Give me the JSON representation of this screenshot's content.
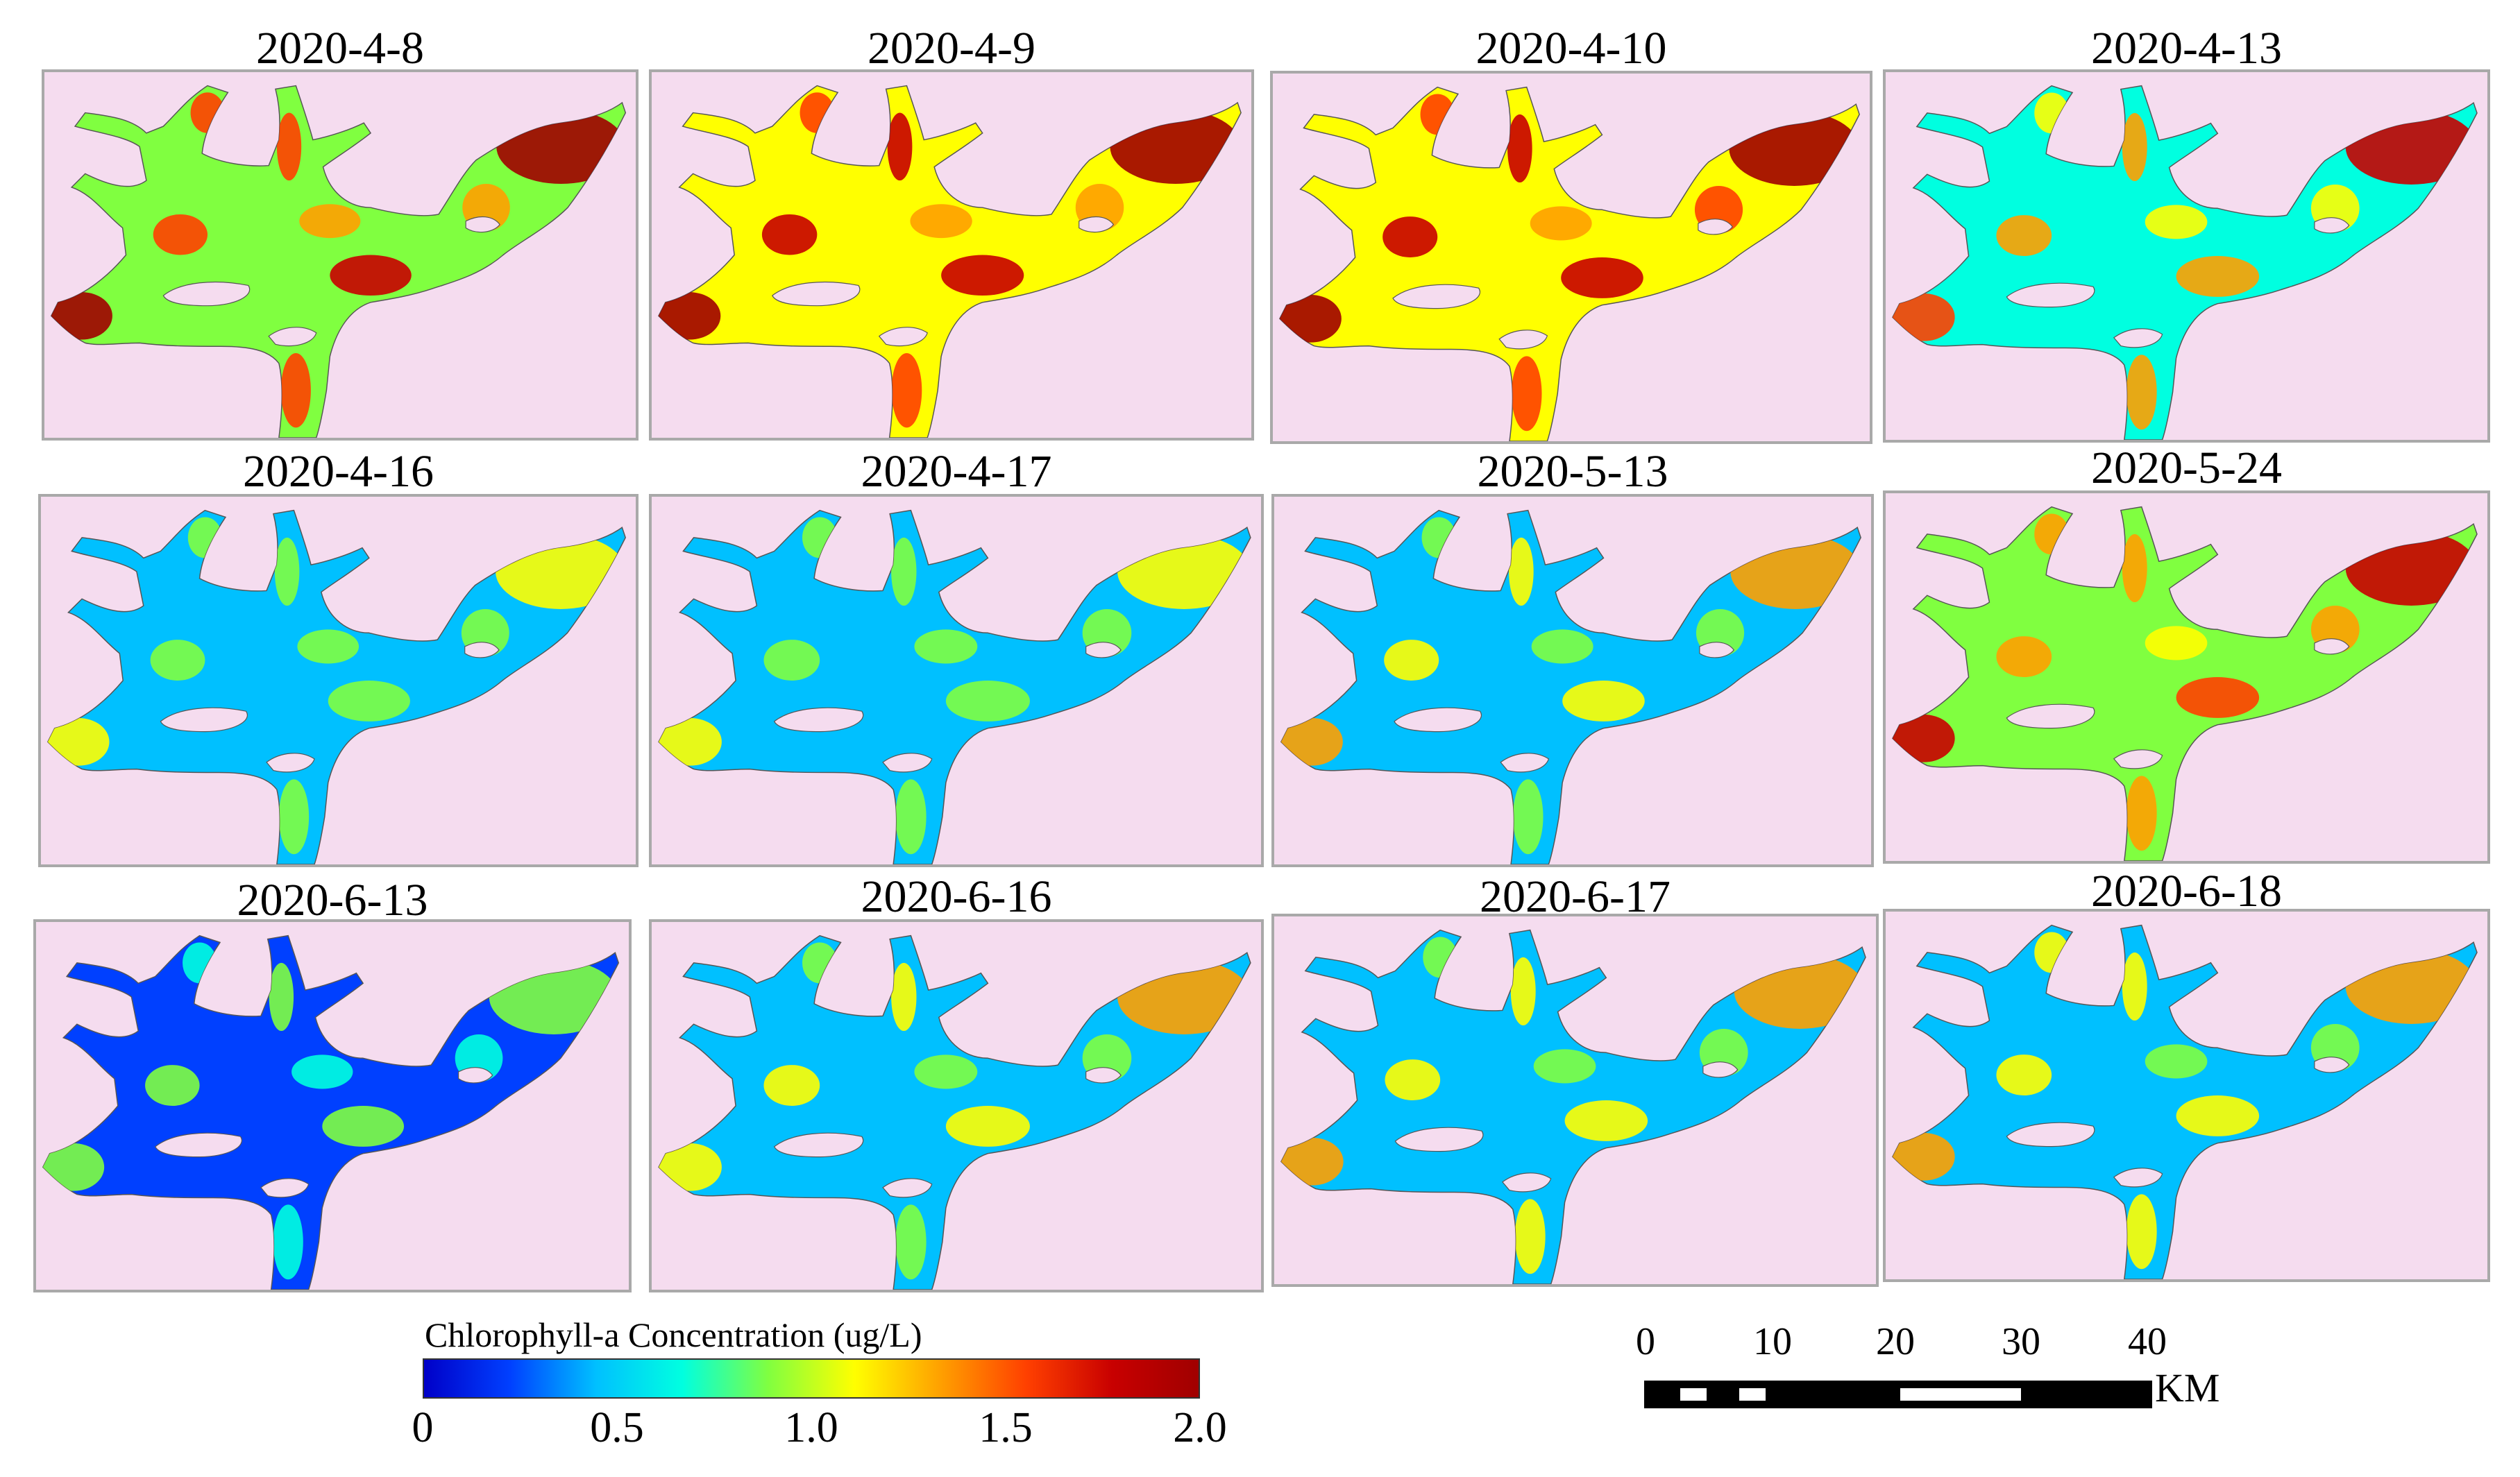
{
  "colors": {
    "panel_background": "#f5dcef",
    "panel_border": "#a9a9a9",
    "colormap": [
      "#0000c8",
      "#0040ff",
      "#00c0ff",
      "#00ffe0",
      "#80ff40",
      "#ffff00",
      "#ffa000",
      "#ff4000",
      "#c80000",
      "#a00000"
    ]
  },
  "panels": [
    {
      "date": "2020-4-8",
      "bloom_level": 0.8
    },
    {
      "date": "2020-4-9",
      "bloom_level": 0.85
    },
    {
      "date": "2020-4-10",
      "bloom_level": 0.92
    },
    {
      "date": "2020-4-13",
      "bloom_level": 0.55
    },
    {
      "date": "2020-4-16",
      "bloom_level": 0.2
    },
    {
      "date": "2020-4-17",
      "bloom_level": 0.22
    },
    {
      "date": "2020-5-13",
      "bloom_level": 0.3
    },
    {
      "date": "2020-5-24",
      "bloom_level": 0.65
    },
    {
      "date": "2020-6-13",
      "bloom_level": 0.1
    },
    {
      "date": "2020-6-16",
      "bloom_level": 0.28
    },
    {
      "date": "2020-6-17",
      "bloom_level": 0.32
    },
    {
      "date": "2020-6-18",
      "bloom_level": 0.38
    }
  ],
  "legend": {
    "title": "Chlorophyll-a  Concentration  (ug/L)",
    "ticks": [
      "0",
      "0.5",
      "1.0",
      "1.5",
      "2.0"
    ],
    "range": [
      0,
      2.0
    ]
  },
  "scale_bar": {
    "ticks": [
      "0",
      "10",
      "20",
      "30",
      "40"
    ],
    "unit": "KM"
  }
}
